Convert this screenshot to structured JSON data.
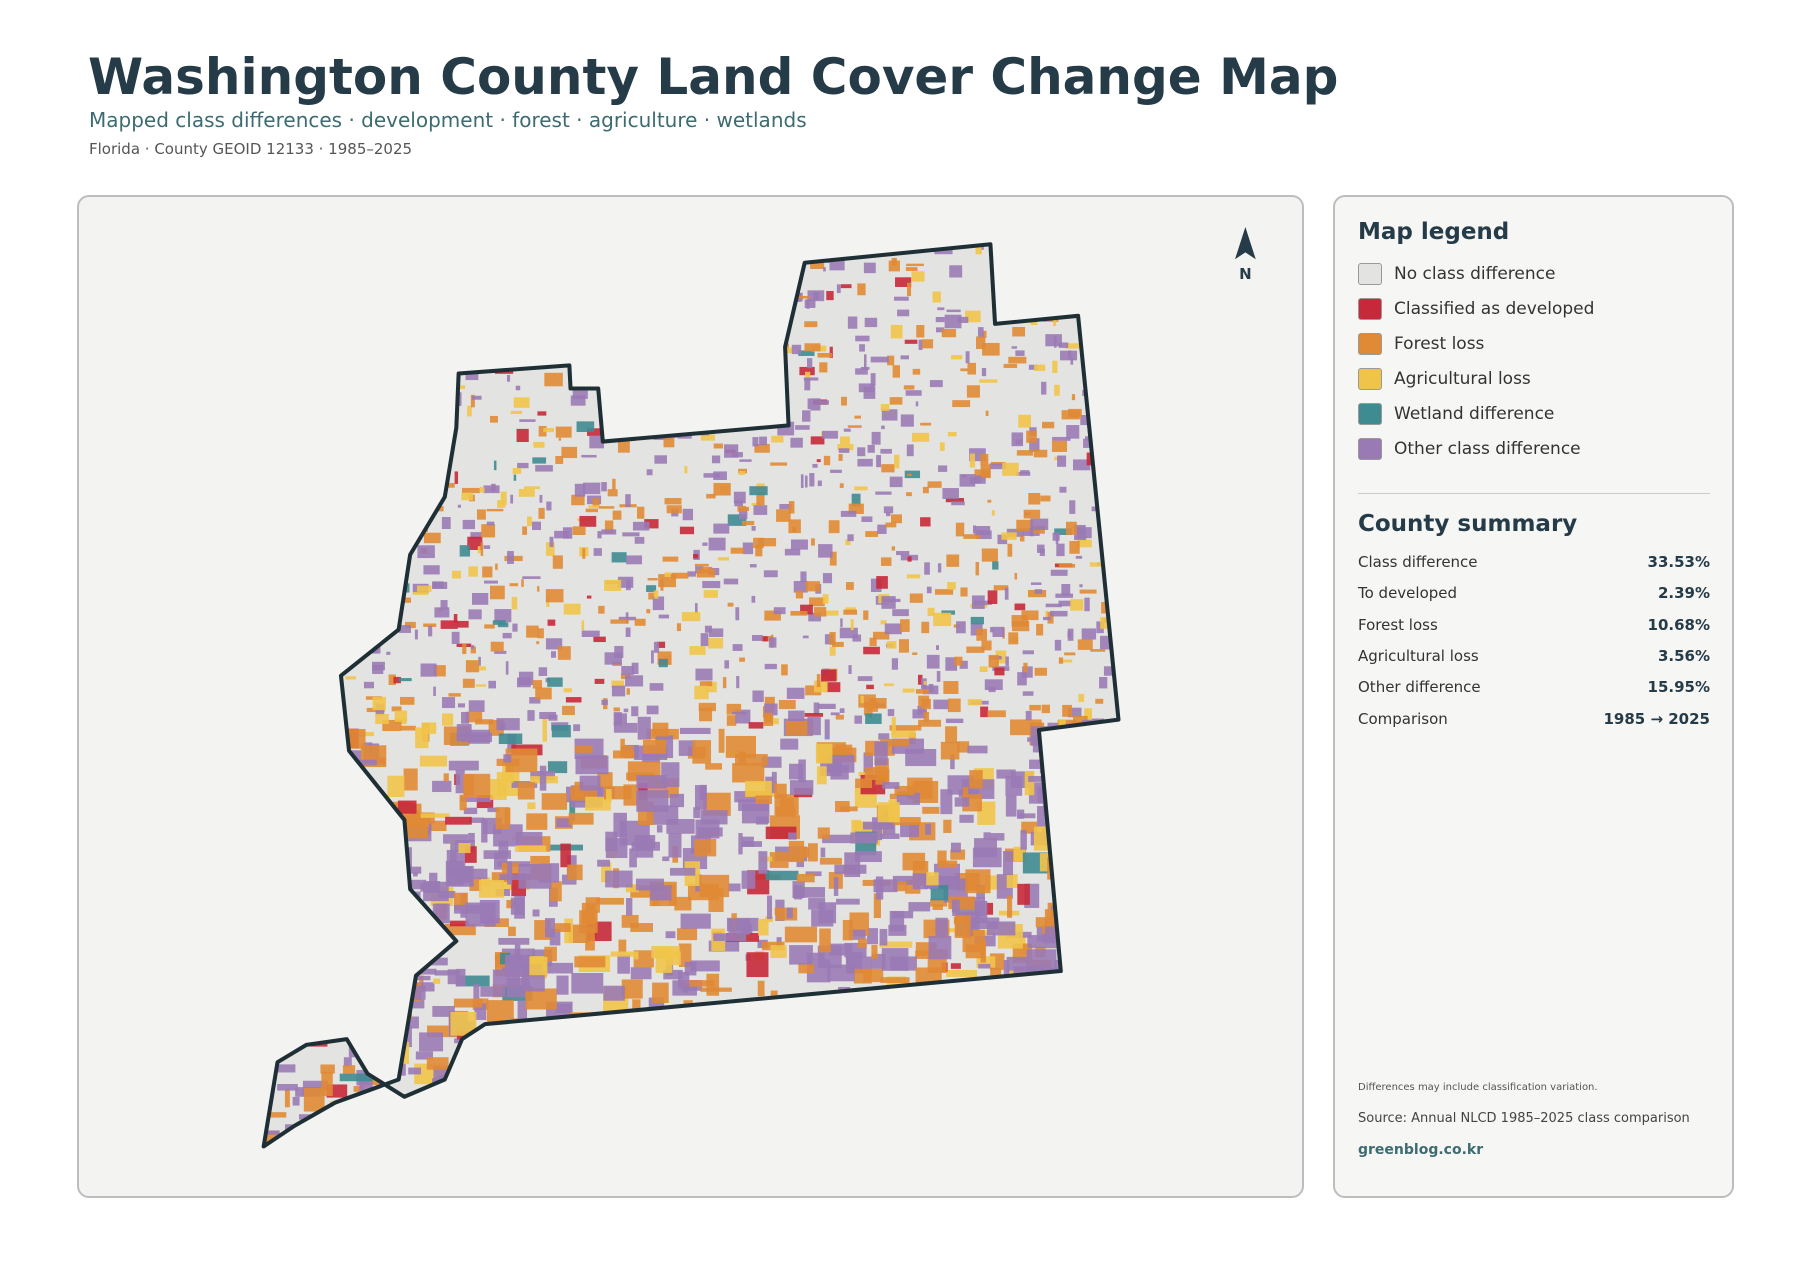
{
  "header": {
    "title": "Washington County Land Cover Change Map",
    "subtitle": "Mapped class differences · development · forest · agriculture · wetlands",
    "meta": "Florida · County GEOID 12133 · 1985–2025"
  },
  "map": {
    "north_label": "N"
  },
  "legend": {
    "title": "Map legend",
    "items": [
      {
        "label": "No class difference",
        "color": "#e3e3e1"
      },
      {
        "label": "Classified as developed",
        "color": "#c8293a"
      },
      {
        "label": "Forest loss",
        "color": "#e08a35"
      },
      {
        "label": "Agricultural loss",
        "color": "#f0c44a"
      },
      {
        "label": "Wetland difference",
        "color": "#3f8b92"
      },
      {
        "label": "Other class difference",
        "color": "#9a7ab5"
      }
    ]
  },
  "summary": {
    "title": "County summary",
    "rows": [
      {
        "label": "Class difference",
        "value": "33.53%"
      },
      {
        "label": "To developed",
        "value": "2.39%"
      },
      {
        "label": "Forest loss",
        "value": "10.68%"
      },
      {
        "label": "Agricultural loss",
        "value": "3.56%"
      },
      {
        "label": "Other difference",
        "value": "15.95%"
      },
      {
        "label": "Comparison",
        "value": "1985 → 2025"
      }
    ]
  },
  "footer": {
    "note": "Differences may include classification variation.",
    "source": "Source: Annual NLCD 1985–2025 class comparison",
    "credit": "greenblog.co.kr"
  }
}
